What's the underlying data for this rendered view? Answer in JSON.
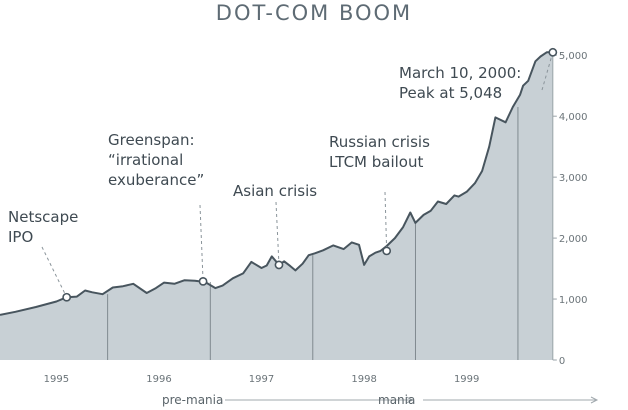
{
  "chart_data": {
    "type": "area",
    "title": "DOT-COM BOOM",
    "xlabel": "",
    "ylabel": "",
    "xlim": [
      1994.45,
      2000.3
    ],
    "ylim": [
      0,
      5250
    ],
    "yticks": [
      0,
      1000,
      2000,
      3000,
      4000,
      5000
    ],
    "ytick_labels": [
      "0",
      "1,000",
      "2,000",
      "3,000",
      "4,000",
      "5,000"
    ],
    "xticks": [
      1995,
      1996,
      1997,
      1998,
      1999
    ],
    "xtick_labels": [
      "1995",
      "1996",
      "1997",
      "1998",
      "1999"
    ],
    "year_dividers": [
      1995.5,
      1996.5,
      1997.5,
      1998.5,
      1999.5
    ],
    "colors": {
      "area": "#c8d0d5",
      "line": "#48555e",
      "text": "#3f4a52",
      "leader": "#8a949a"
    },
    "series": [
      {
        "x": [
          1994.45,
          1994.6,
          1994.8,
          1995.0,
          1995.1,
          1995.2,
          1995.28,
          1995.35,
          1995.45,
          1995.55,
          1995.65,
          1995.75,
          1995.88,
          1995.97,
          1996.05,
          1996.15,
          1996.25,
          1996.35,
          1996.45,
          1996.55,
          1996.62,
          1996.72,
          1996.82,
          1996.9,
          1997.0,
          1997.05,
          1997.1,
          1997.17,
          1997.22,
          1997.28,
          1997.33,
          1997.4,
          1997.46,
          1997.52,
          1997.6,
          1997.7,
          1997.8,
          1997.88,
          1997.95,
          1998.0,
          1998.05,
          1998.11,
          1998.16,
          1998.22,
          1998.3,
          1998.38,
          1998.45,
          1998.5,
          1998.58,
          1998.65,
          1998.72,
          1998.8,
          1998.88,
          1998.92,
          1999.0,
          1999.08,
          1999.15,
          1999.22,
          1999.28,
          1999.38,
          1999.45,
          1999.52,
          1999.55,
          1999.6,
          1999.67,
          1999.72,
          1999.78,
          1999.84
        ],
        "y": [
          740,
          790,
          870,
          960,
          1030,
          1040,
          1140,
          1110,
          1080,
          1190,
          1210,
          1250,
          1100,
          1180,
          1270,
          1250,
          1310,
          1300,
          1280,
          1180,
          1220,
          1340,
          1420,
          1610,
          1510,
          1550,
          1700,
          1560,
          1620,
          1540,
          1470,
          1580,
          1720,
          1750,
          1800,
          1880,
          1820,
          1930,
          1890,
          1560,
          1700,
          1760,
          1790,
          1870,
          2000,
          2180,
          2420,
          2250,
          2380,
          2450,
          2600,
          2560,
          2700,
          2680,
          2760,
          2900,
          3100,
          3500,
          3980,
          3900,
          4150,
          4350,
          4500,
          4580,
          4900,
          4980,
          5048,
          5048
        ]
      }
    ],
    "annotations": [
      {
        "lines": [
          "Netscape",
          "IPO"
        ],
        "x": 1995.1,
        "y": 1030
      },
      {
        "lines": [
          "Greenspan:",
          "“irrational",
          "exuberance”"
        ],
        "x": 1996.43,
        "y": 1290
      },
      {
        "lines": [
          "Asian crisis"
        ],
        "x": 1997.17,
        "y": 1560
      },
      {
        "lines": [
          "Russian crisis",
          "LTCM bailout"
        ],
        "x": 1998.22,
        "y": 1790
      },
      {
        "lines": [
          "March 10, 2000:",
          "Peak at 5,048"
        ],
        "x": 1999.84,
        "y": 5048
      }
    ],
    "phases": [
      {
        "label": "pre-mania",
        "from": 1994.45,
        "to": 1998.5
      },
      {
        "label": "mania",
        "from": 1998.5,
        "to": 2000.3
      }
    ]
  }
}
